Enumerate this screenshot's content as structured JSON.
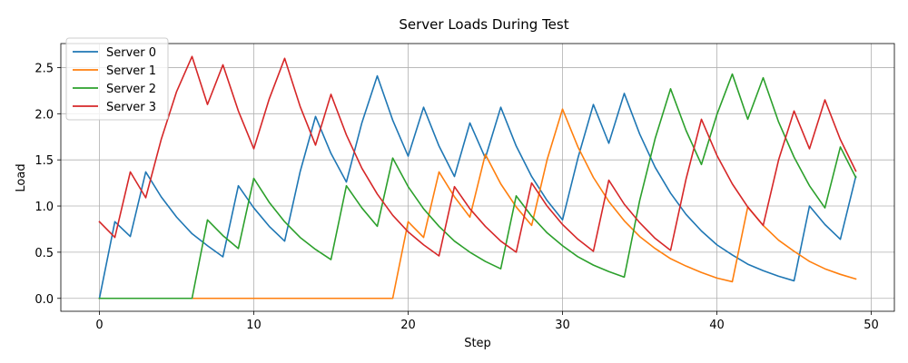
{
  "chart_data": {
    "type": "line",
    "title": "Server Loads During Test",
    "xlabel": "Step",
    "ylabel": "Load",
    "xlim": [
      -2.5,
      51.5
    ],
    "ylim": [
      -0.14,
      2.76
    ],
    "xticks": [
      0,
      10,
      20,
      30,
      40,
      50
    ],
    "xtick_labels": [
      "0",
      "10",
      "20",
      "30",
      "40",
      "50"
    ],
    "yticks": [
      0.0,
      0.5,
      1.0,
      1.5,
      2.0,
      2.5
    ],
    "ytick_labels": [
      "0.0",
      "0.5",
      "1.0",
      "1.5",
      "2.0",
      "2.5"
    ],
    "grid": true,
    "legend_position": "top-left",
    "series": [
      {
        "name": "Server 0",
        "color": "#1f77b4",
        "values": [
          0.0,
          0.83,
          0.67,
          1.37,
          1.1,
          0.88,
          0.7,
          0.57,
          0.45,
          1.22,
          0.98,
          0.78,
          0.62,
          1.37,
          1.97,
          1.57,
          1.26,
          1.9,
          2.41,
          1.93,
          1.54,
          2.07,
          1.65,
          1.32,
          1.9,
          1.52,
          2.07,
          1.65,
          1.32,
          1.06,
          0.85,
          1.52,
          2.1,
          1.68,
          2.22,
          1.78,
          1.42,
          1.14,
          0.91,
          0.73,
          0.58,
          0.47,
          0.37,
          0.3,
          0.24,
          0.19,
          1.0,
          0.8,
          0.64,
          1.32
        ]
      },
      {
        "name": "Server 1",
        "color": "#ff7f0e",
        "values": [
          0.0,
          0.0,
          0.0,
          0.0,
          0.0,
          0.0,
          0.0,
          0.0,
          0.0,
          0.0,
          0.0,
          0.0,
          0.0,
          0.0,
          0.0,
          0.0,
          0.0,
          0.0,
          0.0,
          0.0,
          0.83,
          0.66,
          1.37,
          1.1,
          0.88,
          1.56,
          1.24,
          0.99,
          0.79,
          1.5,
          2.05,
          1.64,
          1.31,
          1.05,
          0.84,
          0.67,
          0.54,
          0.43,
          0.35,
          0.28,
          0.22,
          0.18,
          0.99,
          0.79,
          0.63,
          0.51,
          0.4,
          0.32,
          0.26,
          0.21
        ]
      },
      {
        "name": "Server 2",
        "color": "#2ca02c",
        "values": [
          0.0,
          0.0,
          0.0,
          0.0,
          0.0,
          0.0,
          0.0,
          0.85,
          0.68,
          0.54,
          1.3,
          1.04,
          0.83,
          0.66,
          0.53,
          0.42,
          1.22,
          0.98,
          0.78,
          1.52,
          1.21,
          0.97,
          0.78,
          0.62,
          0.5,
          0.4,
          0.32,
          1.11,
          0.89,
          0.71,
          0.57,
          0.45,
          0.36,
          0.29,
          0.23,
          1.06,
          1.73,
          2.27,
          1.82,
          1.45,
          1.99,
          2.43,
          1.94,
          2.39,
          1.91,
          1.53,
          1.22,
          0.98,
          1.64,
          1.31
        ]
      },
      {
        "name": "Server 3",
        "color": "#d62728",
        "values": [
          0.83,
          0.66,
          1.37,
          1.09,
          1.72,
          2.24,
          2.62,
          2.1,
          2.53,
          2.03,
          1.62,
          2.16,
          2.6,
          2.08,
          1.66,
          2.21,
          1.77,
          1.41,
          1.13,
          0.9,
          0.72,
          0.58,
          0.46,
          1.21,
          0.97,
          0.78,
          0.62,
          0.5,
          1.25,
          1.0,
          0.8,
          0.64,
          0.51,
          1.28,
          1.02,
          0.82,
          0.65,
          0.52,
          1.29,
          1.94,
          1.55,
          1.24,
          0.99,
          0.79,
          1.5,
          2.03,
          1.62,
          2.15,
          1.72,
          1.38
        ]
      }
    ]
  }
}
